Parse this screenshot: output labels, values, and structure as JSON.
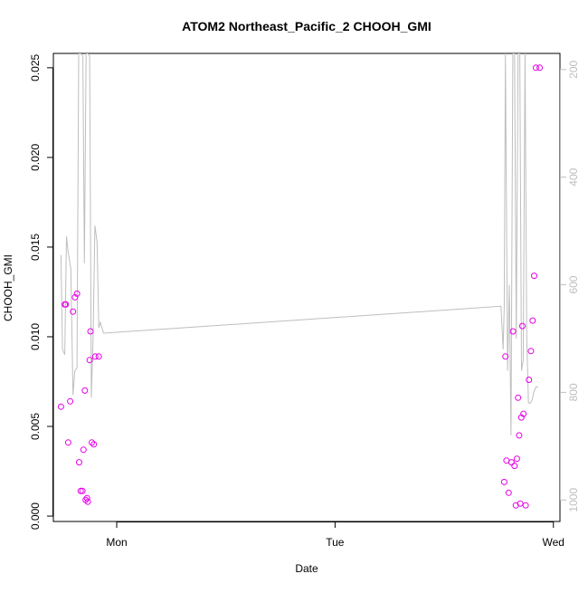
{
  "chart_data": {
    "type": "scatter",
    "title": "ATOM2 Northeast_Pacific_2 CHOOH_GMI",
    "xlabel": "Date",
    "ylabel": "CHOOH_GMI",
    "x_unit": "days",
    "x_ticks": [
      {
        "label": "Mon",
        "value": 1
      },
      {
        "label": "Tue",
        "value": 2
      },
      {
        "label": "Wed",
        "value": 3
      }
    ],
    "xlim": [
      0.71,
      3.03
    ],
    "ylim": [
      -0.0003,
      0.0258
    ],
    "y_ticks": [
      0.0,
      0.005,
      0.01,
      0.015,
      0.02,
      0.025
    ],
    "y_tick_labels": [
      "0.000",
      "0.005",
      "0.010",
      "0.015",
      "0.020",
      "0.025"
    ],
    "y2_ticks": [
      200,
      400,
      600,
      800,
      1000
    ],
    "y2_tick_labels": [
      "200",
      "400",
      "600",
      "800",
      "1000"
    ],
    "y2lim": [
      1040,
      170
    ],
    "grid": false,
    "legend": "none",
    "colors": {
      "points": "#e600e6",
      "pressure_line": "#bebebe",
      "axis": "#000000",
      "secondary_axis": "#bebebe"
    },
    "series": [
      {
        "marker": "open-circle",
        "x": [
          0.745,
          0.762,
          0.767,
          0.778,
          0.787,
          0.8,
          0.809,
          0.818,
          0.828,
          0.835,
          0.843,
          0.848,
          0.854,
          0.858,
          0.864,
          0.868,
          0.876,
          0.88,
          0.886,
          0.895,
          0.902,
          0.918,
          2.775,
          2.78,
          2.785,
          2.795,
          2.808,
          2.815,
          2.822,
          2.828,
          2.833,
          2.838,
          2.843,
          2.848,
          2.853,
          2.858,
          2.863,
          2.873,
          2.888,
          2.897,
          2.905,
          2.912,
          2.92,
          2.937
        ],
        "y": [
          0.0061,
          0.0118,
          0.0118,
          0.0041,
          0.0064,
          0.0114,
          0.0122,
          0.0124,
          0.003,
          0.0014,
          0.0014,
          0.0037,
          0.007,
          0.0009,
          0.001,
          0.0008,
          0.0087,
          0.0103,
          0.0041,
          0.004,
          0.0089,
          0.0089,
          0.0019,
          0.0089,
          0.0031,
          0.0013,
          0.003,
          0.0103,
          0.0028,
          0.0006,
          0.0032,
          0.0066,
          0.0045,
          0.0007,
          0.0055,
          0.0106,
          0.0057,
          0.0006,
          0.0076,
          0.0092,
          0.0109,
          0.0134,
          0.025,
          0.025
        ]
      }
    ],
    "pressure_line": {
      "x": [
        0.745,
        0.752,
        0.762,
        0.77,
        0.778,
        0.79,
        0.8,
        0.808,
        0.818,
        0.826,
        0.835,
        0.845,
        0.852,
        0.86,
        0.868,
        0.876,
        0.884,
        0.892,
        0.9,
        0.91,
        0.918,
        0.925,
        0.94,
        2.76,
        2.77,
        2.775,
        2.78,
        2.79,
        2.798,
        2.806,
        2.814,
        2.822,
        2.83,
        2.838,
        2.846,
        2.854,
        2.862,
        2.87,
        2.878,
        2.886,
        2.894,
        2.902,
        2.91,
        2.92,
        2.93
      ],
      "y": [
        545,
        720,
        730,
        510,
        540,
        570,
        805,
        760,
        755,
        170,
        170,
        175,
        560,
        170,
        170,
        175,
        810,
        700,
        490,
        520,
        680,
        670,
        690,
        640,
        720,
        640,
        170,
        760,
        600,
        880,
        170,
        170,
        700,
        170,
        170,
        760,
        740,
        170,
        700,
        820,
        820,
        815,
        800,
        790,
        790
      ]
    }
  }
}
